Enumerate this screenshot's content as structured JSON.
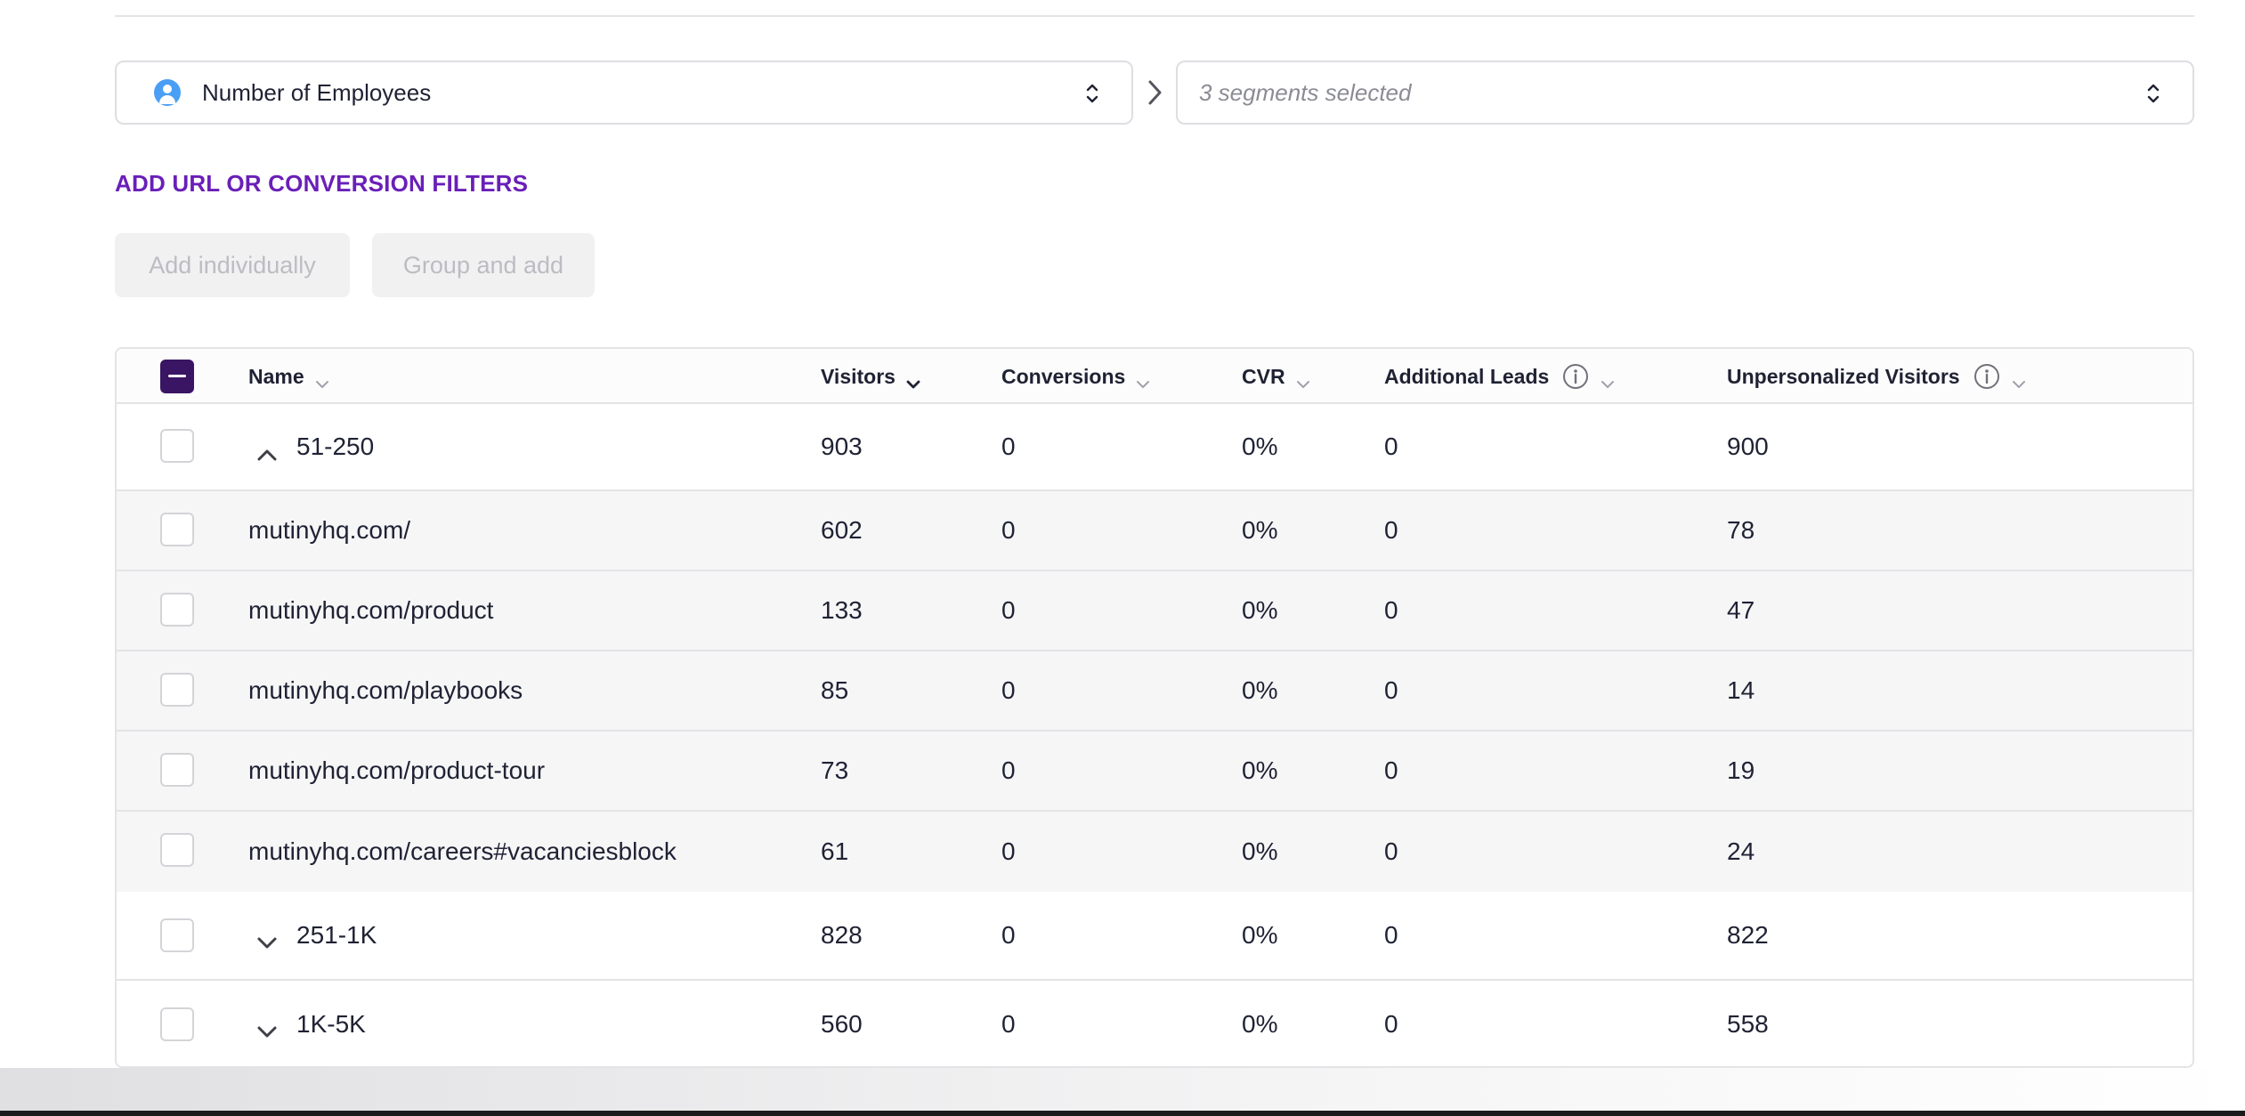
{
  "segment_select": {
    "attribute_label": "Number of Employees",
    "segments_placeholder": "3 segments selected"
  },
  "filters": {
    "add_label": "ADD URL OR CONVERSION FILTERS",
    "add_individually_label": "Add individually",
    "group_and_add_label": "Group and add"
  },
  "table": {
    "columns": {
      "name": "Name",
      "visitors": "Visitors",
      "conversions": "Conversions",
      "cvr": "CVR",
      "additional_leads": "Additional Leads",
      "unpersonalized_visitors": "Unpersonalized Visitors"
    },
    "rows": [
      {
        "name": "51-250",
        "visitors": "903",
        "conversions": "0",
        "cvr": "0%",
        "leads": "0",
        "unpersonalized": "900"
      },
      {
        "name": "mutinyhq.com/",
        "visitors": "602",
        "conversions": "0",
        "cvr": "0%",
        "leads": "0",
        "unpersonalized": "78"
      },
      {
        "name": "mutinyhq.com/product",
        "visitors": "133",
        "conversions": "0",
        "cvr": "0%",
        "leads": "0",
        "unpersonalized": "47"
      },
      {
        "name": "mutinyhq.com/playbooks",
        "visitors": "85",
        "conversions": "0",
        "cvr": "0%",
        "leads": "0",
        "unpersonalized": "14"
      },
      {
        "name": "mutinyhq.com/product-tour",
        "visitors": "73",
        "conversions": "0",
        "cvr": "0%",
        "leads": "0",
        "unpersonalized": "19"
      },
      {
        "name": "mutinyhq.com/careers#vacanciesblock",
        "visitors": "61",
        "conversions": "0",
        "cvr": "0%",
        "leads": "0",
        "unpersonalized": "24"
      },
      {
        "name": "251-1K",
        "visitors": "828",
        "conversions": "0",
        "cvr": "0%",
        "leads": "0",
        "unpersonalized": "822"
      },
      {
        "name": "1K-5K",
        "visitors": "560",
        "conversions": "0",
        "cvr": "0%",
        "leads": "0",
        "unpersonalized": "558"
      }
    ]
  },
  "colors": {
    "accent_purple": "#6a1fb8",
    "checkbox_dark": "#3a1563",
    "person_icon_blue": "#4a9ff5"
  }
}
